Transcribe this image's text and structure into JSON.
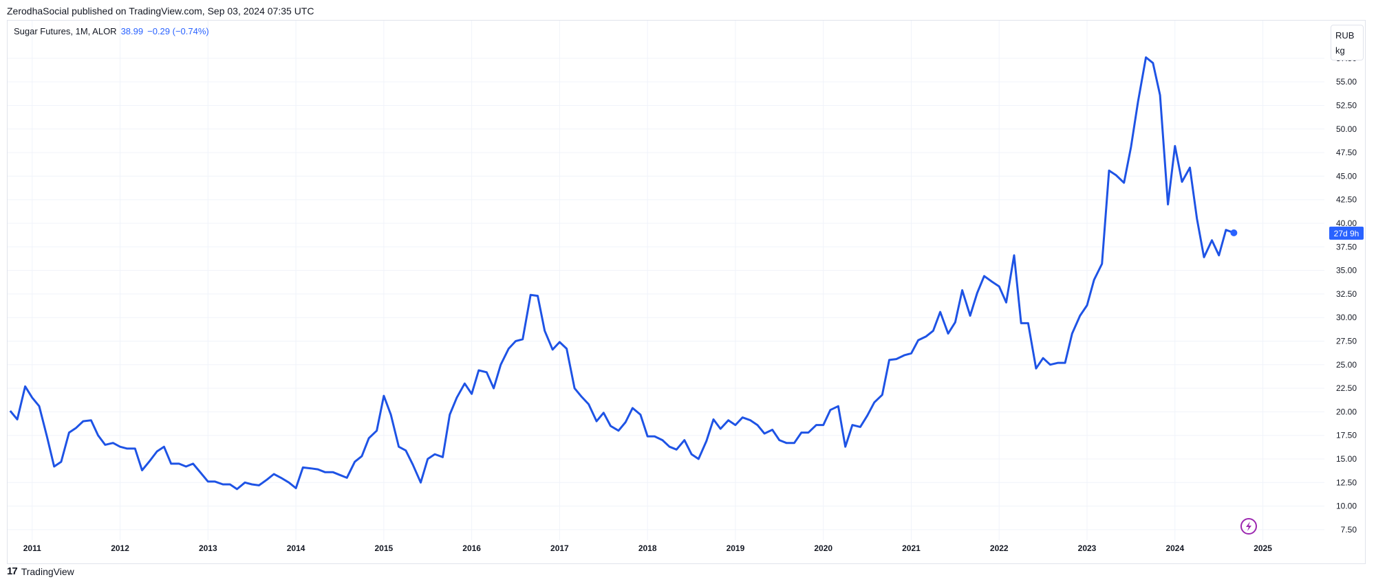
{
  "publisher_line": "ZerodhaSocial published on TradingView.com, Sep 03, 2024 07:35 UTC",
  "legend": {
    "symbol": "Sugar Futures, 1M, ALOR",
    "price": "38.99",
    "change": "−0.29 (−0.74%)"
  },
  "unit_selector": {
    "currency": "RUB",
    "unit": "kg"
  },
  "last_price_label": "27d 9h",
  "brand": {
    "name": "TradingView",
    "logo_icon": "tradingview-logo-icon"
  },
  "colors": {
    "line": "#1e53e5",
    "grid": "#f0f3fa",
    "accent": "#2962ff",
    "flash": "#9c27b0"
  },
  "chart_data": {
    "type": "line",
    "title": "Sugar Futures, 1M, ALOR",
    "xlabel": "",
    "ylabel": "",
    "ylim": [
      6.4,
      61.5
    ],
    "xlim": [
      2010.72,
      2025.7
    ],
    "grid": true,
    "y_ticks": [
      "7.50",
      "10.00",
      "12.50",
      "15.00",
      "17.50",
      "20.00",
      "22.50",
      "25.00",
      "27.50",
      "30.00",
      "32.50",
      "35.00",
      "37.50",
      "40.00",
      "42.50",
      "45.00",
      "47.50",
      "50.00",
      "52.50",
      "55.00",
      "57.50"
    ],
    "x_ticks": [
      "2011",
      "2012",
      "2013",
      "2014",
      "2015",
      "2016",
      "2017",
      "2018",
      "2019",
      "2020",
      "2021",
      "2022",
      "2023",
      "2024",
      "2025"
    ],
    "series": [
      {
        "x": [
          2010.75,
          2010.83,
          2010.92,
          2011.0,
          2011.08,
          2011.17,
          2011.25,
          2011.33,
          2011.42,
          2011.5,
          2011.58,
          2011.67,
          2011.75,
          2011.83,
          2011.92,
          2012.0,
          2012.08,
          2012.17,
          2012.25,
          2012.33,
          2012.42,
          2012.5,
          2012.58,
          2012.67,
          2012.75,
          2012.83,
          2012.92,
          2013.0,
          2013.08,
          2013.17,
          2013.25,
          2013.33,
          2013.42,
          2013.5,
          2013.58,
          2013.67,
          2013.75,
          2013.83,
          2013.92,
          2014.0,
          2014.08,
          2014.17,
          2014.25,
          2014.33,
          2014.42,
          2014.5,
          2014.58,
          2014.67,
          2014.75,
          2014.83,
          2014.92,
          2015.0,
          2015.08,
          2015.17,
          2015.25,
          2015.33,
          2015.42,
          2015.5,
          2015.58,
          2015.67,
          2015.75,
          2015.83,
          2015.92,
          2016.0,
          2016.08,
          2016.17,
          2016.25,
          2016.33,
          2016.42,
          2016.5,
          2016.58,
          2016.67,
          2016.75,
          2016.83,
          2016.92,
          2017.0,
          2017.08,
          2017.17,
          2017.25,
          2017.33,
          2017.42,
          2017.5,
          2017.58,
          2017.67,
          2017.75,
          2017.83,
          2017.92,
          2018.0,
          2018.08,
          2018.17,
          2018.25,
          2018.33,
          2018.42,
          2018.5,
          2018.58,
          2018.67,
          2018.75,
          2018.83,
          2018.92,
          2019.0,
          2019.08,
          2019.17,
          2019.25,
          2019.33,
          2019.42,
          2019.5,
          2019.58,
          2019.67,
          2019.75,
          2019.83,
          2019.92,
          2020.0,
          2020.08,
          2020.17,
          2020.25,
          2020.33,
          2020.42,
          2020.5,
          2020.58,
          2020.67,
          2020.75,
          2020.83,
          2020.92,
          2021.0,
          2021.08,
          2021.17,
          2021.25,
          2021.33,
          2021.42,
          2021.5,
          2021.58,
          2021.67,
          2021.75,
          2021.83,
          2021.92,
          2022.0,
          2022.08,
          2022.17,
          2022.25,
          2022.33,
          2022.42,
          2022.5,
          2022.58,
          2022.67,
          2022.75,
          2022.83,
          2022.92,
          2023.0,
          2023.08,
          2023.17,
          2023.25,
          2023.33,
          2023.42,
          2023.5,
          2023.58,
          2023.67,
          2023.75,
          2023.83,
          2023.92,
          2024.0,
          2024.08,
          2024.17,
          2024.25,
          2024.33,
          2024.42,
          2024.5,
          2024.58,
          2024.67
        ],
        "y": [
          20.1,
          19.2,
          22.7,
          21.5,
          20.6,
          17.3,
          14.2,
          14.7,
          17.8,
          18.3,
          19.0,
          19.1,
          17.5,
          16.5,
          16.7,
          16.3,
          16.1,
          16.1,
          13.8,
          14.7,
          15.8,
          16.3,
          14.5,
          14.5,
          14.2,
          14.5,
          13.5,
          12.6,
          12.6,
          12.3,
          12.3,
          11.8,
          12.5,
          12.3,
          12.2,
          12.8,
          13.4,
          13.0,
          12.5,
          11.9,
          14.1,
          14.0,
          13.9,
          13.6,
          13.6,
          13.3,
          13.0,
          14.7,
          15.3,
          17.2,
          18.0,
          21.7,
          19.7,
          16.3,
          15.9,
          14.4,
          12.5,
          15.0,
          15.5,
          15.2,
          19.7,
          21.5,
          23.0,
          21.9,
          24.4,
          24.2,
          22.5,
          25.0,
          26.7,
          27.5,
          27.7,
          32.4,
          32.3,
          28.6,
          26.6,
          27.4,
          26.7,
          22.5,
          21.6,
          20.8,
          19.0,
          19.9,
          18.5,
          18.0,
          18.9,
          20.4,
          19.7,
          17.4,
          17.4,
          17.0,
          16.3,
          16.0,
          17.0,
          15.5,
          15.0,
          16.9,
          19.2,
          18.2,
          19.1,
          18.6,
          19.4,
          19.1,
          18.6,
          17.7,
          18.1,
          17.0,
          16.7,
          16.7,
          17.8,
          17.8,
          18.6,
          18.6,
          20.2,
          20.6,
          16.3,
          18.6,
          18.4,
          19.6,
          21.0,
          21.8,
          25.5,
          25.6,
          26.0,
          26.2,
          27.6,
          28.0,
          28.6,
          30.6,
          28.3,
          29.5,
          32.9,
          30.2,
          32.6,
          34.4,
          33.8,
          33.3,
          31.6,
          36.6,
          29.4,
          29.4,
          24.6,
          25.7,
          25.0,
          25.2,
          25.2,
          28.3,
          30.2,
          31.3,
          34.0,
          35.7,
          45.6,
          45.1,
          44.3,
          48.1,
          52.9,
          57.6,
          57.0,
          53.6,
          42.0,
          48.2,
          44.4,
          45.9,
          40.5,
          36.4,
          38.2,
          36.6,
          39.3,
          38.99
        ]
      }
    ]
  }
}
